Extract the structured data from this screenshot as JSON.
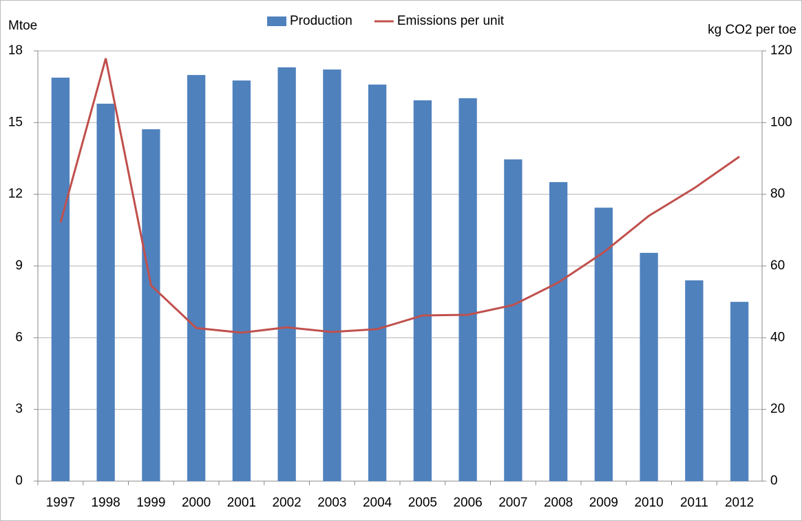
{
  "chart_data": {
    "type": "bar_line",
    "y_label": "Mtoe",
    "y2_label": "kg CO2 per toe",
    "categories": [
      "1997",
      "1998",
      "1999",
      "2000",
      "2001",
      "2002",
      "2003",
      "2004",
      "2005",
      "2006",
      "2007",
      "2008",
      "2009",
      "2010",
      "2011",
      "2012"
    ],
    "series": [
      {
        "name": "Production",
        "type": "bar",
        "color": "#4f81bd",
        "values": [
          16.88,
          15.79,
          14.72,
          16.99,
          16.76,
          17.31,
          17.22,
          16.59,
          15.93,
          16.02,
          13.46,
          12.51,
          11.44,
          9.55,
          8.4,
          7.5
        ]
      },
      {
        "name": "Emissions per unit",
        "type": "line",
        "axis": "y2",
        "color": "#c0504d",
        "values": [
          72.1,
          117.9,
          54.6,
          42.7,
          41.4,
          42.9,
          41.6,
          42.4,
          46.2,
          46.4,
          49.1,
          55.4,
          63.8,
          74.0,
          81.7,
          90.5
        ]
      }
    ],
    "ylim": [
      0,
      18
    ],
    "yticks": [
      0,
      3,
      6,
      9,
      12,
      15,
      18
    ],
    "y2lim": [
      0,
      120
    ],
    "y2ticks": [
      0,
      20,
      40,
      60,
      80,
      100,
      120
    ],
    "grid": true,
    "legend": "top"
  }
}
